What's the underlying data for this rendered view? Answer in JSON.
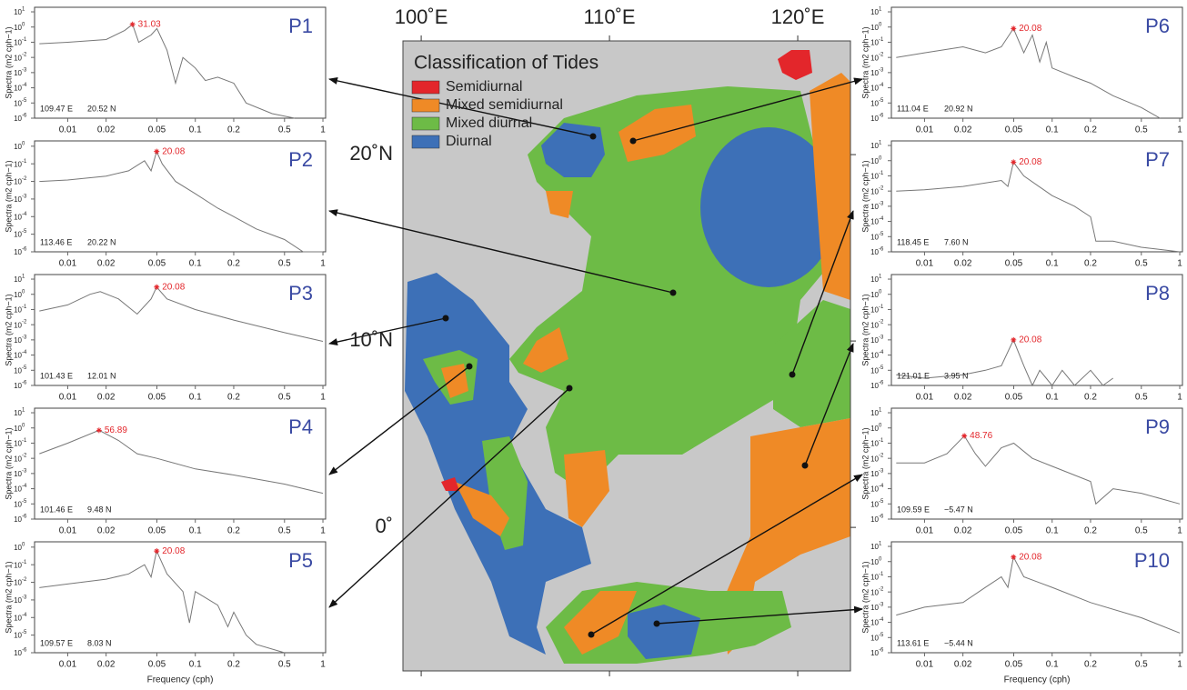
{
  "map": {
    "xlim": [
      99.03,
      122.8
    ],
    "ylim": [
      -7.7,
      26.1
    ],
    "lon_ticks": [
      {
        "value": 100,
        "label": "100˚E"
      },
      {
        "value": 110,
        "label": "110˚E"
      },
      {
        "value": 120,
        "label": "120˚E"
      }
    ],
    "lat_ticks": [
      {
        "value": 20,
        "label": "20˚N"
      },
      {
        "value": 10,
        "label": "10˚N"
      },
      {
        "value": 0,
        "label": "0˚"
      }
    ],
    "legend": {
      "title": "Classification of Tides",
      "items": [
        {
          "name": "Semidiurnal",
          "color": "#e3262b"
        },
        {
          "name": "Mixed semidiurnal",
          "color": "#ef8a26"
        },
        {
          "name": "Mixed diurnal",
          "color": "#6dbb46"
        },
        {
          "name": "Diurnal",
          "color": "#3d70b7"
        }
      ]
    }
  },
  "spectra": {
    "ylabel": "Spectra (m2 cph−1)",
    "xlim": [
      0.0055,
      1.05
    ],
    "xticks": [
      0.01,
      0.02,
      0.05,
      0.1,
      0.2,
      0.5,
      1
    ],
    "ylim": [
      1e-06,
      20
    ],
    "yticks": [
      {
        "value": 1e-06,
        "label": "10",
        "sup": "-6"
      },
      {
        "value": 1e-05,
        "label": "10",
        "sup": "-5"
      },
      {
        "value": 0.0001,
        "label": "10",
        "sup": "-4"
      },
      {
        "value": 0.001,
        "label": "10",
        "sup": "-3"
      },
      {
        "value": 0.01,
        "label": "10",
        "sup": "-2"
      },
      {
        "value": 0.1,
        "label": "10",
        "sup": "-1"
      },
      {
        "value": 1,
        "label": "10",
        "sup": "0"
      },
      {
        "value": 10,
        "label": "10",
        "sup": "1"
      }
    ],
    "line_color": "#777777",
    "peak_color": "#e3262b",
    "panels": [
      {
        "label": "P1",
        "lon": "109.47 E",
        "lat": "20.52 N",
        "peak_period": 31.03,
        "peak_x": 0.0322,
        "peak_y": 1.5,
        "x": [
          0.006,
          0.01,
          0.02,
          0.028,
          0.0322,
          0.036,
          0.045,
          0.05,
          0.06,
          0.07,
          0.08,
          0.1,
          0.12,
          0.15,
          0.2,
          0.25,
          0.4,
          0.6
        ],
        "y": [
          0.08,
          0.1,
          0.15,
          0.6,
          1.5,
          0.1,
          0.3,
          0.8,
          0.03,
          0.0002,
          0.01,
          0.002,
          0.0003,
          0.0005,
          0.0002,
          1e-05,
          2e-06,
          1e-06
        ]
      },
      {
        "label": "P2",
        "lon": "113.46 E",
        "lat": "20.22 N",
        "peak_period": 20.08,
        "peak_x": 0.0498,
        "peak_y": 0.5,
        "ylim": [
          1e-06,
          2
        ],
        "yticks": [
          {
            "value": 1e-06,
            "label": "10",
            "sup": "-6"
          },
          {
            "value": 1e-05,
            "label": "10",
            "sup": "-5"
          },
          {
            "value": 0.0001,
            "label": "10",
            "sup": "-4"
          },
          {
            "value": 0.001,
            "label": "10",
            "sup": "-3"
          },
          {
            "value": 0.01,
            "label": "10",
            "sup": "-2"
          },
          {
            "value": 0.1,
            "label": "10",
            "sup": "-1"
          },
          {
            "value": 1,
            "label": "10",
            "sup": "0"
          }
        ],
        "x": [
          0.006,
          0.01,
          0.02,
          0.03,
          0.04,
          0.045,
          0.0498,
          0.055,
          0.07,
          0.1,
          0.15,
          0.2,
          0.3,
          0.5,
          0.7,
          1
        ],
        "y": [
          0.01,
          0.012,
          0.02,
          0.04,
          0.15,
          0.04,
          0.5,
          0.1,
          0.01,
          0.002,
          0.0003,
          0.0001,
          2e-05,
          5e-06,
          1e-06,
          1e-06
        ]
      },
      {
        "label": "P3",
        "lon": "101.43 E",
        "lat": "12.01 N",
        "peak_period": 20.08,
        "peak_x": 0.0498,
        "peak_y": 3,
        "x": [
          0.006,
          0.01,
          0.015,
          0.018,
          0.025,
          0.035,
          0.045,
          0.0498,
          0.06,
          0.1,
          0.2,
          0.5,
          1
        ],
        "y": [
          0.08,
          0.2,
          1,
          1.5,
          0.5,
          0.05,
          0.5,
          3,
          0.5,
          0.1,
          0.02,
          0.003,
          0.0008
        ]
      },
      {
        "label": "P4",
        "lon": "101.46 E",
        "lat": "9.48 N",
        "peak_period": 56.89,
        "peak_x": 0.0176,
        "peak_y": 0.7,
        "x": [
          0.006,
          0.01,
          0.0176,
          0.025,
          0.035,
          0.05,
          0.1,
          0.2,
          0.5,
          1
        ],
        "y": [
          0.02,
          0.1,
          0.7,
          0.15,
          0.02,
          0.01,
          0.002,
          0.0008,
          0.0002,
          5e-05
        ]
      },
      {
        "label": "P5",
        "lon": "109.57 E",
        "lat": "8.03 N",
        "peak_period": 20.08,
        "peak_x": 0.0498,
        "peak_y": 0.6,
        "ylim": [
          1e-06,
          2
        ],
        "xlabel": "Frequency (cph)",
        "yticks": [
          {
            "value": 1e-06,
            "label": "10",
            "sup": "-6"
          },
          {
            "value": 1e-05,
            "label": "10",
            "sup": "-5"
          },
          {
            "value": 0.0001,
            "label": "10",
            "sup": "-4"
          },
          {
            "value": 0.001,
            "label": "10",
            "sup": "-3"
          },
          {
            "value": 0.01,
            "label": "10",
            "sup": "-2"
          },
          {
            "value": 0.1,
            "label": "10",
            "sup": "-1"
          },
          {
            "value": 1,
            "label": "10",
            "sup": "0"
          }
        ],
        "x": [
          0.006,
          0.01,
          0.02,
          0.03,
          0.04,
          0.045,
          0.0498,
          0.06,
          0.08,
          0.09,
          0.1,
          0.15,
          0.18,
          0.2,
          0.25,
          0.3,
          0.5
        ],
        "y": [
          0.005,
          0.008,
          0.015,
          0.03,
          0.1,
          0.02,
          0.6,
          0.03,
          0.003,
          5e-05,
          0.003,
          0.0005,
          3e-05,
          0.0002,
          1e-05,
          3e-06,
          1e-06
        ]
      },
      {
        "label": "P6",
        "lon": "111.04 E",
        "lat": "20.92 N",
        "peak_period": 20.08,
        "peak_x": 0.0498,
        "peak_y": 0.8,
        "x": [
          0.006,
          0.01,
          0.02,
          0.03,
          0.04,
          0.0498,
          0.06,
          0.07,
          0.08,
          0.09,
          0.1,
          0.15,
          0.2,
          0.3,
          0.5,
          0.7
        ],
        "y": [
          0.01,
          0.02,
          0.05,
          0.02,
          0.05,
          0.8,
          0.02,
          0.3,
          0.005,
          0.1,
          0.002,
          0.0005,
          0.0002,
          3e-05,
          5e-06,
          1e-06
        ]
      },
      {
        "label": "P7",
        "lon": "118.45 E",
        "lat": "7.60 N",
        "peak_period": 20.08,
        "peak_x": 0.0498,
        "peak_y": 0.8,
        "x": [
          0.006,
          0.01,
          0.02,
          0.04,
          0.045,
          0.0498,
          0.06,
          0.1,
          0.15,
          0.2,
          0.22,
          0.3,
          0.5,
          1
        ],
        "y": [
          0.01,
          0.012,
          0.02,
          0.05,
          0.02,
          0.8,
          0.1,
          0.005,
          0.001,
          0.0002,
          5e-06,
          5e-06,
          2e-06,
          1e-06
        ]
      },
      {
        "label": "P8",
        "lon": "121.01 E",
        "lat": "3.95 N",
        "peak_period": 20.08,
        "peak_x": 0.0498,
        "peak_y": 0.001,
        "x": [
          0.006,
          0.01,
          0.02,
          0.03,
          0.04,
          0.0498,
          0.06,
          0.07,
          0.08,
          0.1,
          0.12,
          0.15,
          0.2,
          0.25,
          0.3
        ],
        "y": [
          5e-06,
          3e-06,
          5e-06,
          1e-05,
          2e-05,
          0.001,
          2e-05,
          1e-06,
          1e-05,
          1e-06,
          1e-05,
          1e-06,
          1e-05,
          1e-06,
          3e-06
        ]
      },
      {
        "label": "P9",
        "lon": "109.59 E",
        "lat": "−5.47 N",
        "peak_period": 48.76,
        "peak_x": 0.0205,
        "peak_y": 0.3,
        "x": [
          0.006,
          0.01,
          0.015,
          0.0205,
          0.025,
          0.03,
          0.04,
          0.05,
          0.07,
          0.1,
          0.2,
          0.22,
          0.3,
          0.5,
          1
        ],
        "y": [
          0.005,
          0.005,
          0.02,
          0.3,
          0.02,
          0.003,
          0.05,
          0.1,
          0.01,
          0.003,
          0.0003,
          1e-05,
          0.0001,
          5e-05,
          1e-05
        ]
      },
      {
        "label": "P10",
        "lon": "113.61 E",
        "lat": "−5.44 N",
        "peak_period": 20.08,
        "peak_x": 0.0498,
        "peak_y": 2,
        "xlabel": "Frequency (cph)",
        "x": [
          0.006,
          0.01,
          0.02,
          0.03,
          0.04,
          0.045,
          0.0498,
          0.06,
          0.1,
          0.2,
          0.5,
          1
        ],
        "y": [
          0.0003,
          0.001,
          0.002,
          0.02,
          0.1,
          0.02,
          2,
          0.1,
          0.02,
          0.002,
          0.0002,
          2e-05
        ]
      }
    ]
  }
}
